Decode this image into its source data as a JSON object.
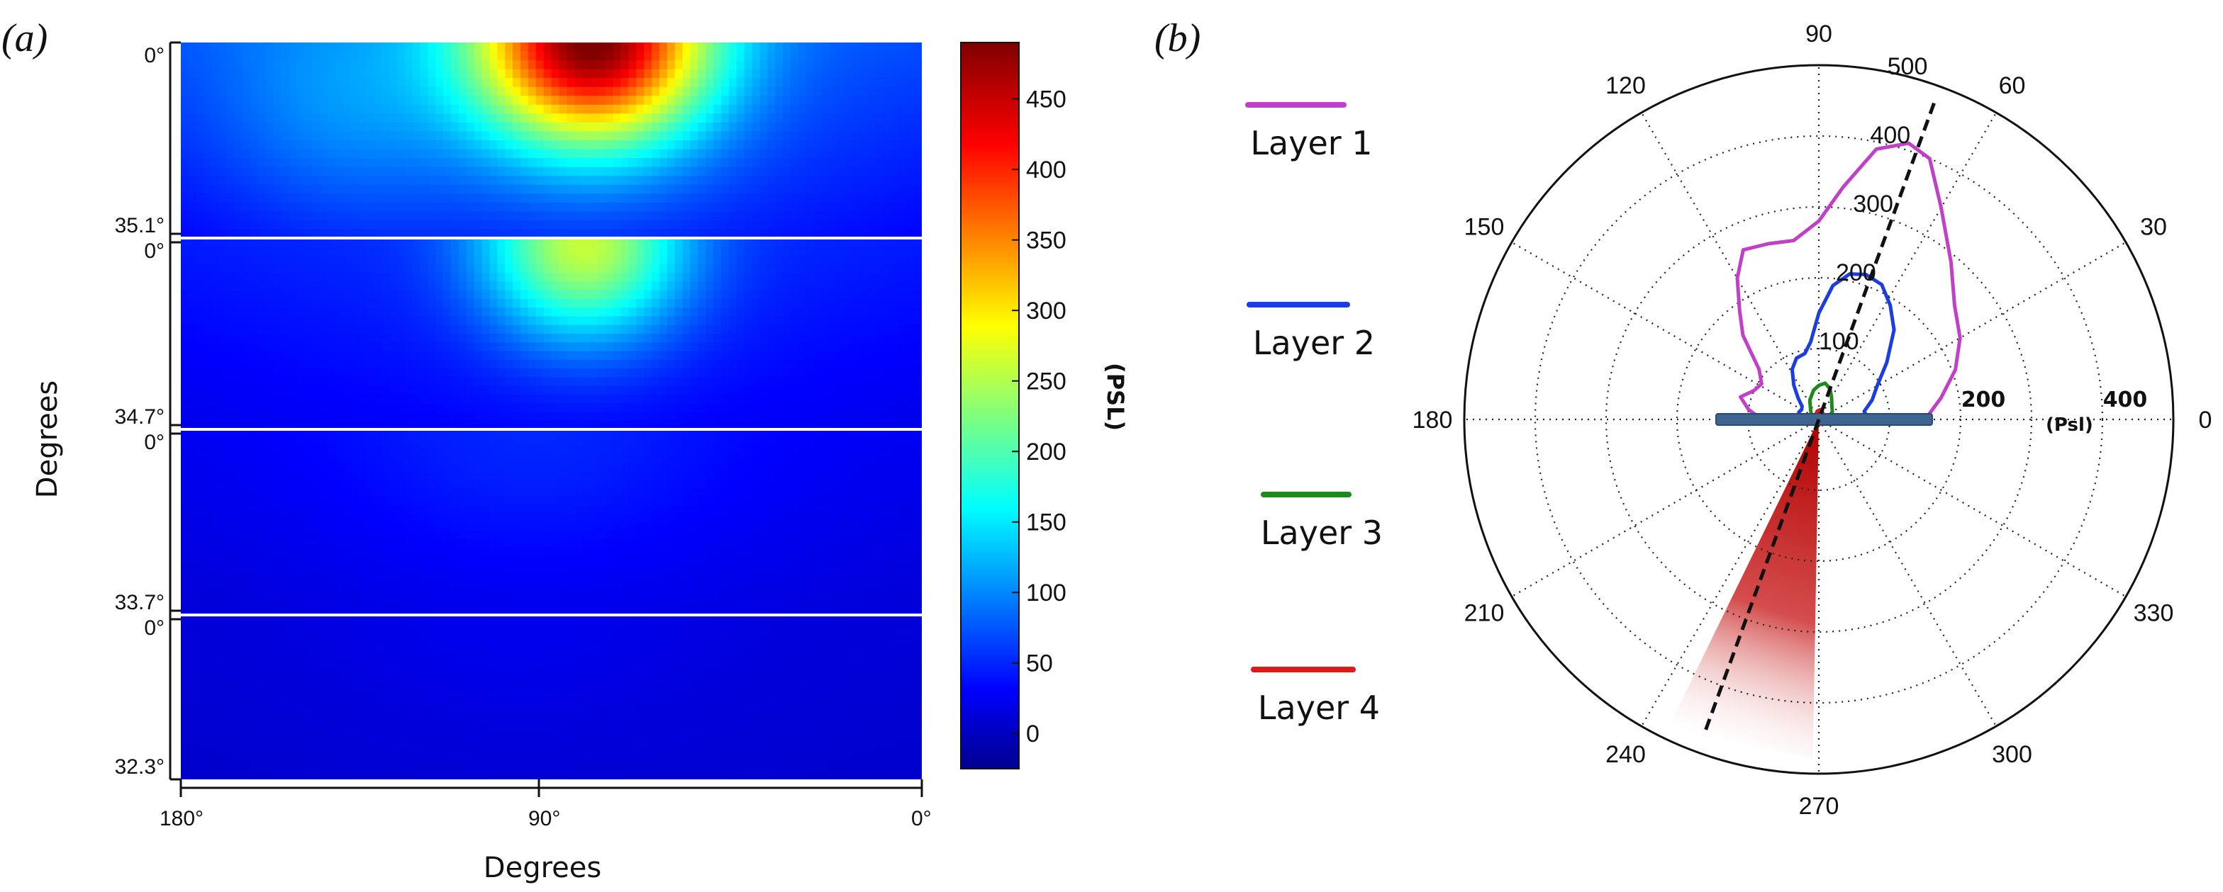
{
  "figure": {
    "panel_a_label": "(a)",
    "panel_b_label": "(b)"
  },
  "chart_data": [
    {
      "type": "heatmap",
      "xlabel": "Degrees",
      "ylabel": "Degrees",
      "x_ticks": [
        "180°",
        "90°",
        "0°"
      ],
      "layers": [
        {
          "top_label": "0°",
          "bottom_label": "35.1°"
        },
        {
          "top_label": "0°",
          "bottom_label": "34.7°"
        },
        {
          "top_label": "0°",
          "bottom_label": "33.7°"
        },
        {
          "top_label": "0°",
          "bottom_label": "32.3°"
        }
      ],
      "colorbar": {
        "label": "(PSL)",
        "range": [
          -25,
          490
        ],
        "ticks": [
          "0",
          "50",
          "100",
          "150",
          "200",
          "250",
          "300",
          "350",
          "400",
          "450"
        ],
        "tick_values": [
          0,
          50,
          100,
          150,
          200,
          250,
          300,
          350,
          400,
          450
        ]
      },
      "hotspots": [
        {
          "layer": 1,
          "x_deg": 80,
          "y_frac": 0.0,
          "value": 480,
          "spread_x_deg": 35,
          "spread_y_frac": 0.65
        },
        {
          "layer": 1,
          "x_deg": 140,
          "y_frac": 0.35,
          "value": 110,
          "spread_x_deg": 40,
          "spread_y_frac": 0.7
        },
        {
          "layer": 2,
          "x_deg": 82,
          "y_frac": 0.05,
          "value": 250,
          "spread_x_deg": 30,
          "spread_y_frac": 0.6
        },
        {
          "layer": 3,
          "x_deg": 95,
          "y_frac": 0.1,
          "value": 45,
          "spread_x_deg": 60,
          "spread_y_frac": 0.9
        },
        {
          "layer": 4,
          "x_deg": 100,
          "y_frac": 0.1,
          "value": 20,
          "spread_x_deg": 60,
          "spread_y_frac": 0.9
        }
      ],
      "base_values": [
        70,
        45,
        25,
        12
      ]
    },
    {
      "type": "polar",
      "angle_labels": [
        "0",
        "30",
        "60",
        "90",
        "120",
        "150",
        "180",
        "210",
        "240",
        "270",
        "300",
        "330"
      ],
      "angle_values": [
        0,
        30,
        60,
        90,
        120,
        150,
        180,
        210,
        240,
        270,
        300,
        330
      ],
      "r_max": 500,
      "r_ticks_upper": [
        "100",
        "200",
        "300",
        "400",
        "500"
      ],
      "r_ticks_upper_values": [
        100,
        200,
        300,
        400,
        500
      ],
      "r_ticks_right": [
        "200",
        "400"
      ],
      "r_ticks_right_values": [
        200,
        400
      ],
      "unit_label": "(Psl)",
      "series": [
        {
          "name": "Layer 1",
          "color": "#c040c8",
          "points": [
            [
              0,
              150
            ],
            [
              10,
              175
            ],
            [
              20,
              205
            ],
            [
              30,
              230
            ],
            [
              40,
              250
            ],
            [
              50,
              290
            ],
            [
              60,
              345
            ],
            [
              67,
              400
            ],
            [
              72,
              410
            ],
            [
              78,
              390
            ],
            [
              84,
              330
            ],
            [
              90,
              280
            ],
            [
              98,
              255
            ],
            [
              106,
              258
            ],
            [
              114,
              262
            ],
            [
              120,
              230
            ],
            [
              126,
              190
            ],
            [
              132,
              160
            ],
            [
              140,
              110
            ],
            [
              148,
              95
            ],
            [
              156,
              100
            ],
            [
              164,
              115
            ],
            [
              172,
              100
            ],
            [
              180,
              80
            ]
          ]
        },
        {
          "name": "Layer 2",
          "color": "#1c3ee0",
          "points": [
            [
              0,
              70
            ],
            [
              10,
              65
            ],
            [
              20,
              80
            ],
            [
              30,
              95
            ],
            [
              40,
              125
            ],
            [
              50,
              165
            ],
            [
              58,
              190
            ],
            [
              65,
              210
            ],
            [
              72,
              215
            ],
            [
              78,
              210
            ],
            [
              84,
              190
            ],
            [
              90,
              150
            ],
            [
              96,
              110
            ],
            [
              102,
              95
            ],
            [
              110,
              92
            ],
            [
              118,
              80
            ],
            [
              126,
              60
            ],
            [
              134,
              42
            ],
            [
              142,
              30
            ],
            [
              150,
              28
            ],
            [
              160,
              30
            ],
            [
              170,
              27
            ],
            [
              180,
              22
            ]
          ]
        },
        {
          "name": "Layer 3",
          "color": "#1e8a1e",
          "points": [
            [
              0,
              16
            ],
            [
              15,
              18
            ],
            [
              30,
              22
            ],
            [
              45,
              26
            ],
            [
              60,
              36
            ],
            [
              70,
              46
            ],
            [
              80,
              52
            ],
            [
              90,
              48
            ],
            [
              100,
              42
            ],
            [
              115,
              30
            ],
            [
              130,
              18
            ],
            [
              150,
              12
            ],
            [
              170,
              10
            ],
            [
              180,
              9
            ]
          ]
        },
        {
          "name": "Layer 4",
          "color": "#e01818",
          "points": [
            [
              0,
              5
            ],
            [
              30,
              7
            ],
            [
              60,
              11
            ],
            [
              80,
              14
            ],
            [
              100,
              12
            ],
            [
              130,
              8
            ],
            [
              160,
              5
            ],
            [
              180,
              4
            ]
          ]
        }
      ],
      "beam_direction_deg": 70,
      "beam_sector_deg": [
        244,
        269
      ],
      "slab_color": "#3e6590"
    }
  ]
}
